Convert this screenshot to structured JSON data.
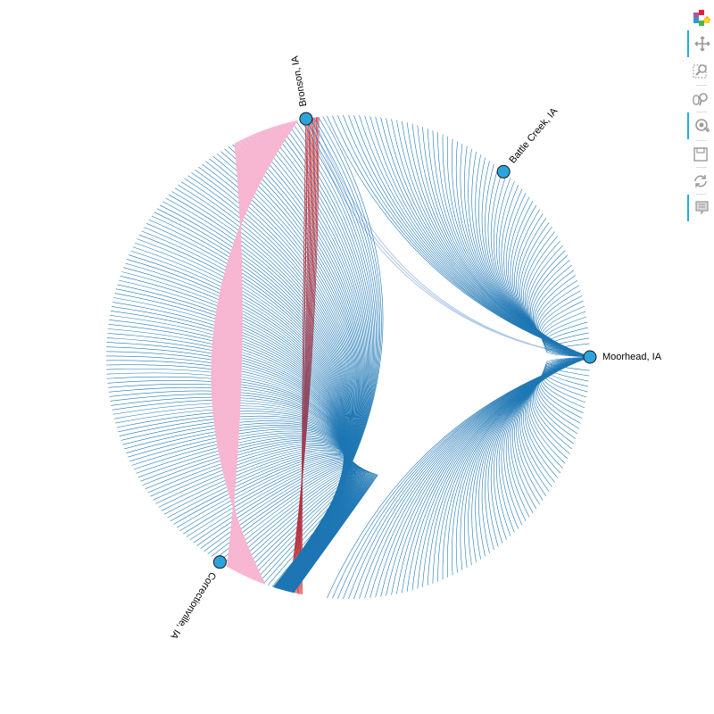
{
  "graph": {
    "nodes": [
      {
        "id": "bronson",
        "label": "Bronson, IA",
        "angle_deg": -100
      },
      {
        "id": "battle_creek",
        "label": "Battle Creek, IA",
        "angle_deg": -50
      },
      {
        "id": "moorhead",
        "label": "Moorhead, IA",
        "angle_deg": 0
      },
      {
        "id": "correctionville",
        "label": "Correctionville, IA",
        "angle_deg": 122
      }
    ],
    "edges": [
      {
        "source": "bronson",
        "target": "correctionville",
        "color": "#d62728",
        "count": 12
      },
      {
        "source": "bronson",
        "target": "moorhead",
        "color": "#aec7e8",
        "count": 3
      },
      {
        "source": "correctionville",
        "target": "moorhead",
        "color": "#1f77b4",
        "count": 150
      },
      {
        "source": "correctionville",
        "target": "correctionville",
        "color": "#f7b6d2",
        "count": 120
      }
    ],
    "node_fill": "#2ca3dc",
    "node_stroke": "#1a1a1a"
  },
  "toolbar": {
    "tools": [
      {
        "name": "bokeh-logo",
        "icon": "bokeh-logo-icon",
        "active": false
      },
      {
        "name": "pan-tool",
        "icon": "pan-icon",
        "active": true
      },
      {
        "name": "box-zoom-tool",
        "icon": "box-zoom-icon",
        "active": false
      },
      {
        "name": "wheel-zoom-tool",
        "icon": "wheel-zoom-icon",
        "active": false
      },
      {
        "name": "tap-tool",
        "icon": "tap-icon",
        "active": true
      },
      {
        "name": "save-tool",
        "icon": "save-icon",
        "active": false
      },
      {
        "name": "reset-tool",
        "icon": "reset-icon",
        "active": false
      },
      {
        "name": "hover-tool",
        "icon": "hover-icon",
        "active": true
      }
    ],
    "accent": "#26aae1"
  }
}
